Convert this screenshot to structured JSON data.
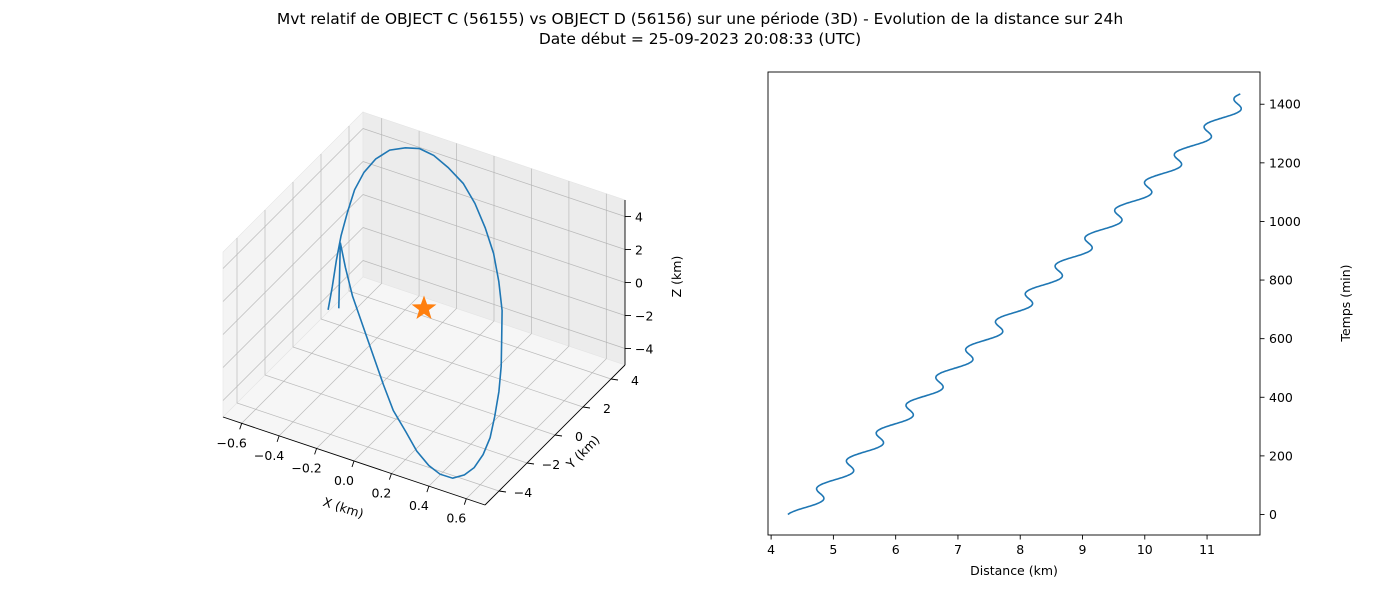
{
  "figure": {
    "title_line1": "Mvt relatif de OBJECT C (56155) vs OBJECT D (56156) sur une période (3D) - Evolution de la distance sur 24h",
    "title_line2": "Date début = 25-09-2023 20:08:33 (UTC)"
  },
  "colors": {
    "series": "#1f77b4",
    "marker": "#ff7f0e",
    "grid": "#b0b0b0",
    "pane": "#f2f2f2"
  },
  "chart_data": [
    {
      "type": "line3d",
      "xlabel": "X (km)",
      "ylabel": "Y (km)",
      "zlabel": "Z (km)",
      "xlim": [
        -0.7,
        0.7
      ],
      "ylim": [
        -5,
        5
      ],
      "zlim": [
        -5,
        5
      ],
      "xticks": [
        "−0.6",
        "−0.4",
        "−0.2",
        "0.0",
        "0.2",
        "0.4",
        "0.6"
      ],
      "yticks": [
        "−4",
        "−2",
        "0",
        "2",
        "4"
      ],
      "zticks": [
        "−4",
        "−2",
        "0",
        "2",
        "4"
      ],
      "grid": true,
      "marker": {
        "shape": "star",
        "x": 0,
        "y": 0,
        "z": 0
      },
      "series": [
        {
          "x": [
            -0.55,
            -0.58,
            -0.61,
            -0.63,
            -0.64,
            -0.64,
            -0.62,
            -0.58,
            -0.52,
            -0.44,
            -0.36,
            -0.27,
            -0.17,
            -0.06,
            0.04,
            0.14,
            0.23,
            0.31,
            0.38,
            0.43,
            0.48,
            0.52,
            0.55,
            0.57,
            0.57,
            0.56,
            0.53,
            0.49,
            0.43,
            0.37,
            0.29,
            0.21,
            0.12,
            0.03,
            -0.07,
            -0.17,
            -0.27,
            -0.36,
            -0.44,
            -0.5
          ],
          "y": [
            0.5,
            1.2,
            1.9,
            2.5,
            3.1,
            3.6,
            4.0,
            4.3,
            4.5,
            4.55,
            4.5,
            4.3,
            4.0,
            3.6,
            3.1,
            2.5,
            1.9,
            1.2,
            0.5,
            -0.2,
            -0.9,
            -1.6,
            -2.3,
            -2.9,
            -3.4,
            -3.9,
            -4.2,
            -4.5,
            -4.6,
            -4.6,
            -4.4,
            -4.1,
            -3.8,
            -3.3,
            -2.7,
            -2.1,
            -1.5,
            -0.8,
            -0.1,
            0.6
          ],
          "z": [
            -2.6,
            -1.9,
            -1.0,
            -0.1,
            0.8,
            1.7,
            2.5,
            3.2,
            3.8,
            4.2,
            4.5,
            4.6,
            4.5,
            4.3,
            3.9,
            3.3,
            2.6,
            1.8,
            0.9,
            0.0,
            -0.9,
            -1.7,
            -2.5,
            -3.2,
            -3.8,
            -4.2,
            -4.5,
            -4.6,
            -4.5,
            -4.2,
            -3.8,
            -3.2,
            -2.5,
            -1.7,
            -0.8,
            0.1,
            1.0,
            1.8,
            2.4,
            -2.4
          ]
        }
      ]
    },
    {
      "type": "line",
      "xlabel": "Distance (km)",
      "ylabel": "Temps (min)",
      "xlim": [
        3.95,
        11.85
      ],
      "ylim": [
        -70,
        1510
      ],
      "xticks": [
        4,
        5,
        6,
        7,
        8,
        9,
        10,
        11
      ],
      "yticks": [
        0,
        200,
        400,
        600,
        800,
        1000,
        1200,
        1400
      ],
      "yaxis_side": "right",
      "grid": false,
      "series": [
        {
          "x_start": 4.27,
          "x_end": 11.5,
          "t_start": 0,
          "t_end": 1435,
          "oscillation_period_min": 95,
          "oscillation_amplitude_km": 0.32
        }
      ]
    }
  ]
}
